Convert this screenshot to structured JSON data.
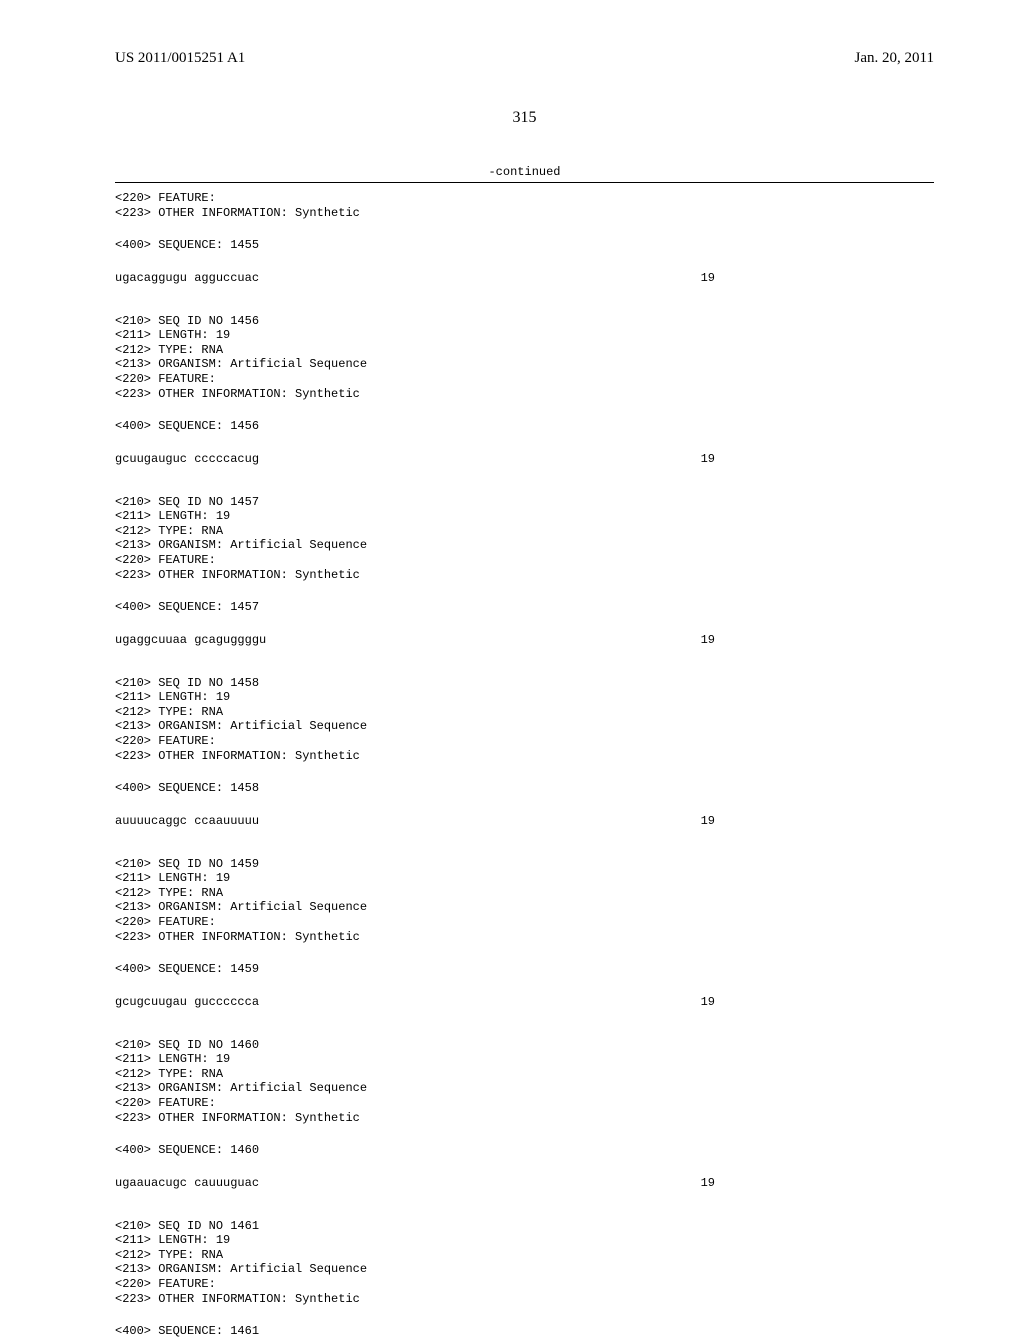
{
  "header": {
    "publication_number": "US 2011/0015251 A1",
    "publication_date": "Jan. 20, 2011"
  },
  "page_number": "315",
  "continued_label": "-continued",
  "blocks": [
    {
      "lines": [
        "<220> FEATURE:",
        "<223> OTHER INFORMATION: Synthetic"
      ]
    },
    {
      "lines": [
        "<400> SEQUENCE: 1455"
      ]
    },
    {
      "seq": "ugacaggugu agguccuac",
      "seq_num": "19"
    },
    {
      "lines": [
        "<210> SEQ ID NO 1456",
        "<211> LENGTH: 19",
        "<212> TYPE: RNA",
        "<213> ORGANISM: Artificial Sequence",
        "<220> FEATURE:",
        "<223> OTHER INFORMATION: Synthetic"
      ]
    },
    {
      "lines": [
        "<400> SEQUENCE: 1456"
      ]
    },
    {
      "seq": "gcuugauguc cccccacug",
      "seq_num": "19"
    },
    {
      "lines": [
        "<210> SEQ ID NO 1457",
        "<211> LENGTH: 19",
        "<212> TYPE: RNA",
        "<213> ORGANISM: Artificial Sequence",
        "<220> FEATURE:",
        "<223> OTHER INFORMATION: Synthetic"
      ]
    },
    {
      "lines": [
        "<400> SEQUENCE: 1457"
      ]
    },
    {
      "seq": "ugaggcuuaa gcaguggggu",
      "seq_num": "19"
    },
    {
      "lines": [
        "<210> SEQ ID NO 1458",
        "<211> LENGTH: 19",
        "<212> TYPE: RNA",
        "<213> ORGANISM: Artificial Sequence",
        "<220> FEATURE:",
        "<223> OTHER INFORMATION: Synthetic"
      ]
    },
    {
      "lines": [
        "<400> SEQUENCE: 1458"
      ]
    },
    {
      "seq": "auuuucaggc ccaauuuuu",
      "seq_num": "19"
    },
    {
      "lines": [
        "<210> SEQ ID NO 1459",
        "<211> LENGTH: 19",
        "<212> TYPE: RNA",
        "<213> ORGANISM: Artificial Sequence",
        "<220> FEATURE:",
        "<223> OTHER INFORMATION: Synthetic"
      ]
    },
    {
      "lines": [
        "<400> SEQUENCE: 1459"
      ]
    },
    {
      "seq": "gcugcuugau gucccccca",
      "seq_num": "19"
    },
    {
      "lines": [
        "<210> SEQ ID NO 1460",
        "<211> LENGTH: 19",
        "<212> TYPE: RNA",
        "<213> ORGANISM: Artificial Sequence",
        "<220> FEATURE:",
        "<223> OTHER INFORMATION: Synthetic"
      ]
    },
    {
      "lines": [
        "<400> SEQUENCE: 1460"
      ]
    },
    {
      "seq": "ugaauacugc cauuuguac",
      "seq_num": "19"
    },
    {
      "lines": [
        "<210> SEQ ID NO 1461",
        "<211> LENGTH: 19",
        "<212> TYPE: RNA",
        "<213> ORGANISM: Artificial Sequence",
        "<220> FEATURE:",
        "<223> OTHER INFORMATION: Synthetic"
      ]
    },
    {
      "lines": [
        "<400> SEQUENCE: 1461"
      ]
    }
  ]
}
